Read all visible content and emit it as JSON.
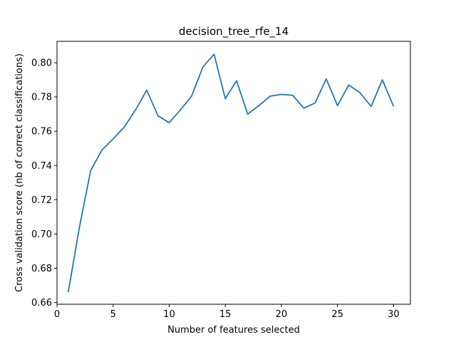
{
  "chart_data": {
    "type": "line",
    "title": "decision_tree_rfe_14",
    "xlabel": "Number of features selected",
    "ylabel": "Cross validation score (nb of correct classifications)",
    "xlim": [
      0,
      31.5
    ],
    "ylim": [
      0.659,
      0.8125
    ],
    "xticks": [
      0,
      5,
      10,
      15,
      20,
      25,
      30
    ],
    "yticks": [
      0.66,
      0.68,
      0.7,
      0.72,
      0.74,
      0.76,
      0.78,
      0.8
    ],
    "ytick_labels": [
      "0.66",
      "0.68",
      "0.70",
      "0.72",
      "0.74",
      "0.76",
      "0.78",
      "0.80"
    ],
    "grid": false,
    "series": [
      {
        "color": "#1f77b4",
        "x": [
          1,
          2,
          3,
          4,
          5,
          6,
          7,
          8,
          9,
          10,
          11,
          12,
          13,
          14,
          15,
          16,
          17,
          18,
          19,
          20,
          21,
          22,
          23,
          24,
          25,
          26,
          27,
          28,
          29,
          30
        ],
        "y": [
          0.666,
          0.704,
          0.737,
          0.749,
          0.7555,
          0.7625,
          0.7725,
          0.784,
          0.769,
          0.765,
          0.7725,
          0.7805,
          0.7975,
          0.805,
          0.779,
          0.7895,
          0.77,
          0.775,
          0.7805,
          0.7815,
          0.781,
          0.7735,
          0.7765,
          0.7905,
          0.775,
          0.787,
          0.7825,
          0.7745,
          0.79,
          0.7745
        ]
      }
    ]
  }
}
